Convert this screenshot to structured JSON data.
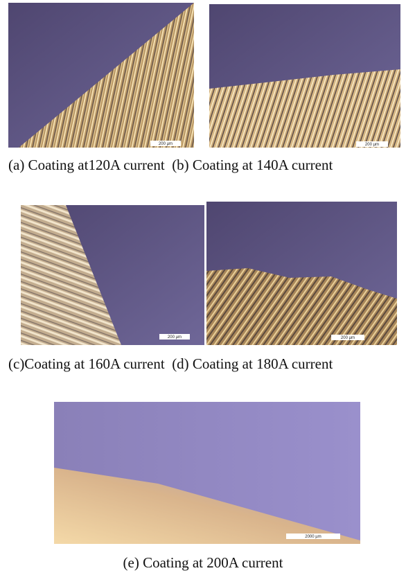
{
  "figures": [
    {
      "caption": "(a) Coating at120A current",
      "scale_bar": "200 µm"
    },
    {
      "caption": "(b) Coating at 140A current",
      "scale_bar": "200 µm"
    },
    {
      "caption": "(c)Coating at 160A current",
      "scale_bar": "200 µm"
    },
    {
      "caption": "(d) Coating at 180A current",
      "scale_bar": "200 µm"
    },
    {
      "caption": "(e) Coating at 200A current",
      "scale_bar": "2000 µm"
    }
  ]
}
